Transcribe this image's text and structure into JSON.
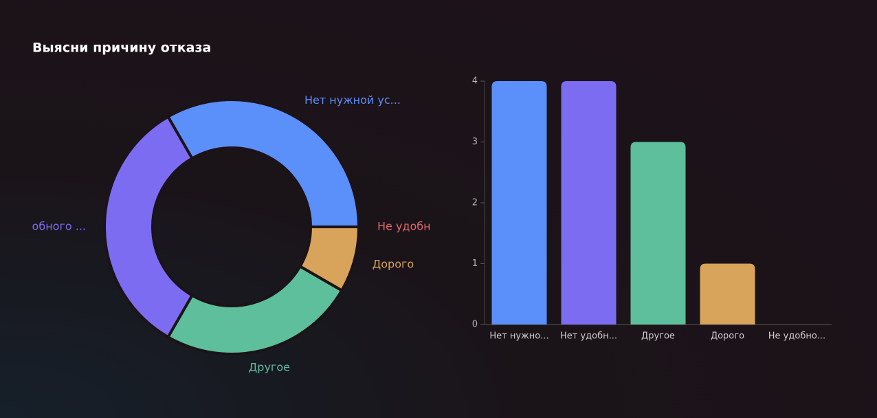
{
  "header": {
    "title": "Выясни причину отказа"
  },
  "chart_data": [
    {
      "type": "donut",
      "categories": [
        "Нет нужной ус...",
        "Не удобн",
        "Дорого",
        "Другое",
        "обного ..."
      ],
      "values": [
        4,
        0,
        1,
        3,
        4
      ],
      "colors": [
        "#5b8ff9",
        "#e0686a",
        "#d8a35a",
        "#5dbf9b",
        "#7b6cf2"
      ]
    },
    {
      "type": "bar",
      "categories": [
        "Нет нужно...",
        "Нет удобн...",
        "Другое",
        "Дорого",
        "Не удобно..."
      ],
      "values": [
        4,
        4,
        3,
        1,
        0
      ],
      "colors": [
        "#5b8ff9",
        "#7b6cf2",
        "#5dbf9b",
        "#d8a35a",
        "#e0686a"
      ],
      "ylim": [
        0,
        4
      ],
      "yticks": [
        0,
        1,
        2,
        3,
        4
      ]
    }
  ]
}
